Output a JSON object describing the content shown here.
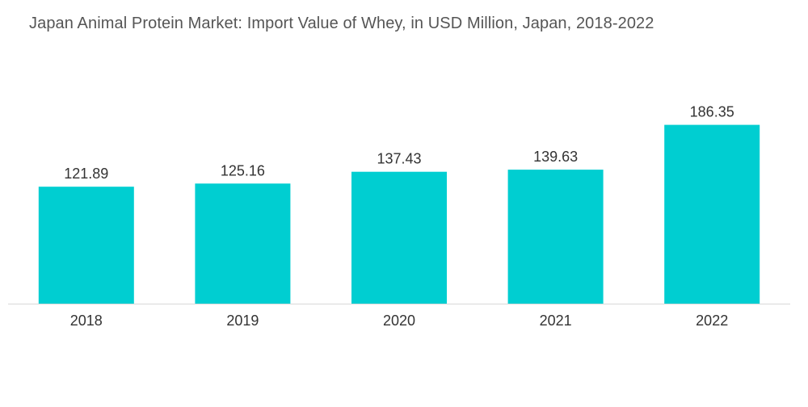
{
  "chart_data": {
    "type": "bar",
    "title": "Japan Animal Protein Market: Import Value of Whey, in USD Million, Japan, 2018-2022",
    "categories": [
      "2018",
      "2019",
      "2020",
      "2021",
      "2022"
    ],
    "values": [
      121.89,
      125.16,
      137.43,
      139.63,
      186.35
    ],
    "value_labels": [
      "121.89",
      "125.16",
      "137.43",
      "139.63",
      "186.35"
    ],
    "xlabel": "",
    "ylabel": "",
    "ylim": [
      0,
      200
    ],
    "grid": false,
    "legend": "none",
    "bar_color": "#00CED1",
    "axis_color": "#d9d9d9"
  }
}
